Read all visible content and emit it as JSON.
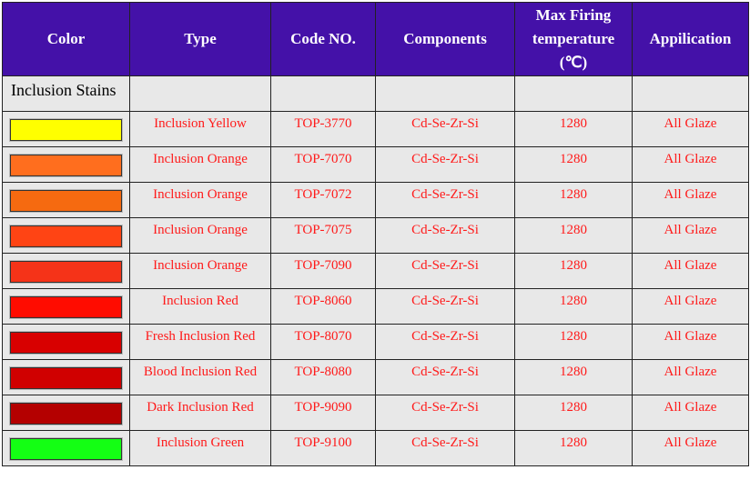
{
  "headers": [
    "Color",
    "Type",
    "Code NO.",
    "Components",
    "Max Firing temperature (℃)",
    "Appilication"
  ],
  "section_label": "Inclusion Stains",
  "rows": [
    {
      "color": "#ffff00",
      "type": "Inclusion Yellow",
      "code": "TOP-3770",
      "components": "Cd-Se-Zr-Si",
      "temp": "1280",
      "application": "All Glaze"
    },
    {
      "color": "#ff6e1e",
      "type": "Inclusion Orange",
      "code": "TOP-7070",
      "components": "Cd-Se-Zr-Si",
      "temp": "1280",
      "application": "All Glaze"
    },
    {
      "color": "#f66a10",
      "type": "Inclusion Orange",
      "code": "TOP-7072",
      "components": "Cd-Se-Zr-Si",
      "temp": "1280",
      "application": "All Glaze"
    },
    {
      "color": "#ff4414",
      "type": "Inclusion Orange",
      "code": "TOP-7075",
      "components": "Cd-Se-Zr-Si",
      "temp": "1280",
      "application": "All Glaze"
    },
    {
      "color": "#f53318",
      "type": "Inclusion Orange",
      "code": "TOP-7090",
      "components": "Cd-Se-Zr-Si",
      "temp": "1280",
      "application": "All Glaze"
    },
    {
      "color": "#ff0c00",
      "type": "Inclusion Red",
      "code": "TOP-8060",
      "components": "Cd-Se-Zr-Si",
      "temp": "1280",
      "application": "All Glaze"
    },
    {
      "color": "#d80000",
      "type": "Fresh Inclusion Red",
      "code": "TOP-8070",
      "components": "Cd-Se-Zr-Si",
      "temp": "1280",
      "application": "All Glaze"
    },
    {
      "color": "#d00000",
      "type": "Blood Inclusion Red",
      "code": "TOP-8080",
      "components": "Cd-Se-Zr-Si",
      "temp": "1280",
      "application": "All Glaze"
    },
    {
      "color": "#b40000",
      "type": "Dark Inclusion Red",
      "code": "TOP-9090",
      "components": "Cd-Se-Zr-Si",
      "temp": "1280",
      "application": "All Glaze"
    },
    {
      "color": "#14ff14",
      "type": "Inclusion Green",
      "code": "TOP-9100",
      "components": "Cd-Se-Zr-Si",
      "temp": "1280",
      "application": "All Glaze"
    }
  ]
}
